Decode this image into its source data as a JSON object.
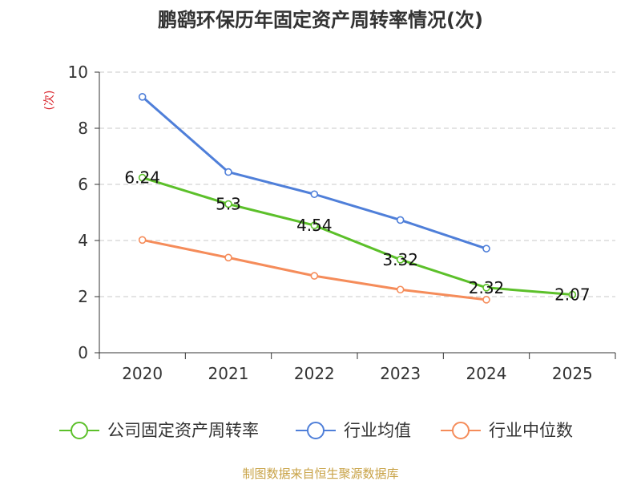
{
  "chart_data": {
    "type": "line",
    "title": "鹏鹞环保历年固定资产周转率情况(次)",
    "ylabel": "(次)",
    "xlabel": "",
    "categories": [
      "2020",
      "2021",
      "2022",
      "2023",
      "2024",
      "2025"
    ],
    "ylim": [
      0,
      10
    ],
    "yticks": [
      0,
      2,
      4,
      6,
      8,
      10
    ],
    "grid": true,
    "legend_position": "bottom",
    "series": [
      {
        "name": "公司固定资产周转率",
        "color": "#5cc02a",
        "values": [
          6.24,
          5.3,
          4.54,
          3.32,
          2.32,
          2.07
        ],
        "labels": [
          "6.24",
          "5.3",
          "4.54",
          "3.32",
          "2.32",
          "2.07"
        ]
      },
      {
        "name": "行业均值",
        "color": "#4f7fd9",
        "values": [
          9.12,
          6.44,
          5.65,
          4.73,
          3.71,
          null
        ]
      },
      {
        "name": "行业中位数",
        "color": "#f58c5a",
        "values": [
          4.02,
          3.39,
          2.74,
          2.25,
          1.89,
          null
        ]
      }
    ],
    "source": "制图数据来自恒生聚源数据库"
  }
}
